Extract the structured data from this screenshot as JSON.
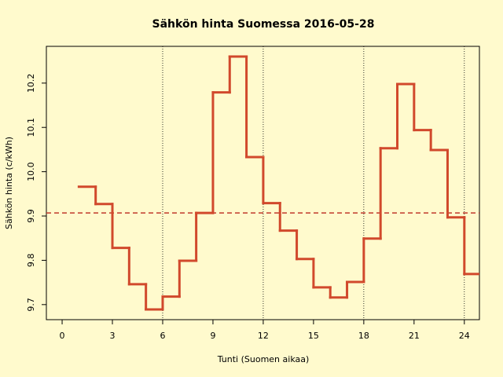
{
  "chart_data": {
    "type": "step",
    "title": "Sähkön hinta Suomessa 2016-05-28",
    "x_label": "Tunti (Suomen aikaa)",
    "y_label": "Sähkön hinta (c/kWh)",
    "x": [
      1,
      2,
      3,
      4,
      5,
      6,
      7,
      8,
      9,
      10,
      11,
      12,
      13,
      14,
      15,
      16,
      17,
      18,
      19,
      20,
      21,
      22,
      23,
      24
    ],
    "series": [
      {
        "name": "Sähkön hinta",
        "color": "#d1492c",
        "values": [
          9.966,
          9.927,
          9.828,
          9.746,
          9.689,
          9.718,
          9.799,
          9.907,
          10.179,
          10.26,
          10.033,
          9.929,
          9.867,
          9.803,
          9.739,
          9.716,
          9.751,
          9.849,
          10.053,
          10.198,
          10.094,
          10.049,
          9.897,
          9.769
        ]
      }
    ],
    "reference_line": 9.907,
    "reference_color": "#c0392b",
    "vlines": [
      6,
      12,
      18,
      24
    ],
    "xlim": [
      -0.94,
      24.9
    ],
    "ylim": [
      9.666,
      10.283
    ],
    "xticks": [
      0,
      3,
      6,
      9,
      12,
      15,
      18,
      21,
      24
    ],
    "yticks": [
      9.7,
      9.8,
      9.9,
      {
        "value": 10.0,
        "label": "10.0"
      },
      10.1,
      10.2
    ]
  }
}
